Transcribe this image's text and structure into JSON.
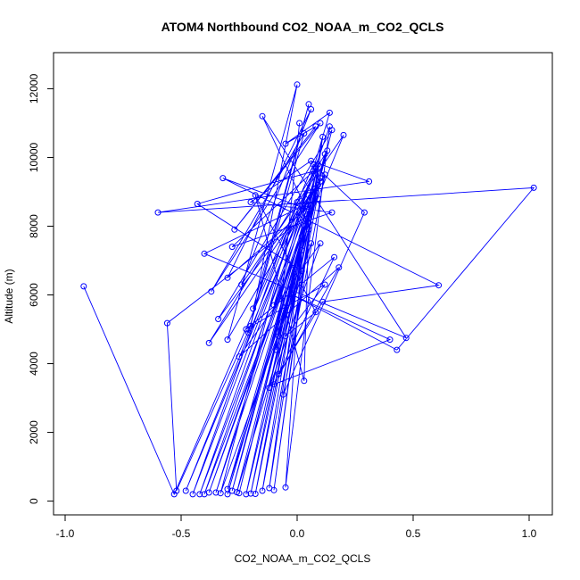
{
  "chart_data": {
    "type": "line",
    "title": "ATOM4 Northbound CO2_NOAA_m_CO2_QCLS",
    "xlabel": "CO2_NOAA_m_CO2_QCLS",
    "ylabel": "Altitude (m)",
    "xlim": [
      -1.05,
      1.1
    ],
    "ylim": [
      -400,
      13050
    ],
    "xticks": [
      -1.0,
      -0.5,
      0.0,
      0.5,
      1.0
    ],
    "xtick_labels": [
      "-1.0",
      "-0.5",
      "0.0",
      "0.5",
      "1.0"
    ],
    "yticks": [
      0,
      2000,
      4000,
      6000,
      8000,
      10000,
      12000
    ],
    "ytick_labels": [
      "0",
      "2000",
      "4000",
      "6000",
      "8000",
      "10000",
      "12000"
    ],
    "grid": false,
    "markers": "open-circle",
    "series": [
      {
        "color": "#0000ff",
        "x": [
          -0.92,
          -0.53,
          0.08,
          -0.48,
          0.05,
          -0.4,
          0.02,
          -0.38,
          0.1,
          -0.3,
          0.06,
          -0.25,
          0.04,
          -0.2,
          0.12,
          -0.28,
          0.08,
          -0.35,
          0.03,
          -0.22,
          0.1,
          -0.15,
          0.02,
          -0.05,
          0.14,
          -0.42,
          0.07,
          -0.3,
          0.05,
          -0.18,
          0.11,
          -0.1,
          0.09,
          -0.45,
          0.0,
          -0.33,
          0.06,
          -0.26,
          0.08,
          -0.12,
          0.04,
          -0.56,
          -0.52,
          -0.2,
          0.0,
          -0.3,
          0.09,
          -0.38,
          0.13,
          -0.08,
          0.02,
          -0.43,
          0.07,
          -0.28,
          0.15,
          -0.2,
          0.06,
          0.31,
          -0.6,
          1.02,
          0.43,
          -0.02,
          0.4,
          -0.1,
          0.18,
          -0.25,
          0.1,
          -0.12,
          0.05,
          0.03,
          -0.18,
          0.08,
          -0.05,
          0.12,
          -0.22,
          0.16,
          -0.08,
          0.11,
          0.61,
          -0.32,
          0.04,
          -0.15,
          0.47,
          -0.4,
          0.09,
          -0.3,
          0.06,
          -0.24,
          0.2,
          -0.1,
          0.14,
          -0.05,
          0.08,
          -0.27,
          0.1,
          -0.37,
          0.03,
          -0.21,
          0.05,
          -0.19,
          0.07,
          0.29,
          -0.06,
          0.12,
          -0.34,
          0.15,
          -0.09,
          0.01
        ],
        "y": [
          6250,
          200,
          9700,
          300,
          8900,
          200,
          7700,
          250,
          9400,
          200,
          8600,
          230,
          8200,
          220,
          10100,
          300,
          9500,
          250,
          8000,
          200,
          9300,
          300,
          7300,
          400,
          10900,
          200,
          9000,
          350,
          7900,
          210,
          10600,
          320,
          9800,
          200,
          8700,
          230,
          7500,
          260,
          9100,
          380,
          8300,
          5180,
          300,
          5100,
          12120,
          4700,
          9200,
          4600,
          10200,
          4800,
          6700,
          8650,
          9600,
          7400,
          8400,
          8700,
          9900,
          9300,
          8400,
          9120,
          4400,
          6000,
          4700,
          3400,
          6800,
          4200,
          7500,
          3300,
          8100,
          3500,
          8900,
          5500,
          4800,
          6300,
          5000,
          7100,
          3700,
          5800,
          6280,
          9400,
          8500,
          11200,
          4750,
          7200,
          8800,
          6500,
          11400,
          6300,
          10650,
          5700,
          11300,
          10400,
          10900,
          7900,
          11000,
          6100,
          10700,
          4900,
          11550,
          5600,
          9800,
          8400,
          3100,
          9500,
          5300,
          10800,
          4400,
          11000
        ]
      }
    ]
  }
}
